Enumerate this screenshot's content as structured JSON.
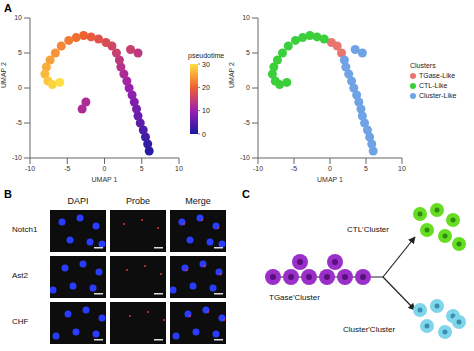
{
  "panel_labels": [
    "A",
    "B",
    "C"
  ],
  "chart_data": [
    {
      "type": "scatter",
      "x_label": "UMAP 1",
      "y_label": "UMAP 2",
      "xlim": [
        -10,
        10
      ],
      "ylim": [
        -10,
        10
      ],
      "xticks": [
        -10,
        -5,
        0,
        5,
        10
      ],
      "yticks": [
        -10,
        -5,
        0,
        5,
        10
      ],
      "x": [
        6,
        5.8,
        5.5,
        5.2,
        4.8,
        4.5,
        4.3,
        4,
        3.7,
        3.3,
        3,
        2.6,
        2.2,
        2,
        4.5,
        3.5,
        1.6,
        1,
        0.2,
        -0.8,
        -1.8,
        -2.8,
        -3.8,
        -4.8,
        -5.8,
        -6.6,
        -7.3,
        -7.8,
        -8,
        -7.6,
        -7,
        -6,
        -2.5,
        -3
      ],
      "y": [
        -9,
        -8,
        -7,
        -6,
        -5,
        -4,
        -3,
        -2,
        -1,
        0,
        1,
        2,
        3,
        4,
        5,
        5.5,
        5,
        6,
        6.5,
        7,
        7.3,
        7.5,
        7.2,
        6.8,
        6,
        5,
        4,
        3,
        2,
        1,
        0.5,
        0.8,
        -2,
        -3
      ],
      "color_values": [
        1,
        2,
        3,
        4,
        5,
        6,
        7,
        8,
        9,
        10,
        11,
        12,
        13,
        14,
        14,
        15,
        15,
        16,
        17,
        18,
        19,
        20,
        21,
        22,
        23,
        24,
        25,
        26,
        27,
        28,
        29,
        30,
        12,
        12
      ],
      "color_label": "pseudotime",
      "color_range": [
        0,
        30
      ],
      "color_ticks": [
        0,
        10,
        20,
        30
      ]
    },
    {
      "type": "scatter",
      "x_label": "UMAP 1",
      "y_label": "UMAP 2",
      "xlim": [
        -10,
        10
      ],
      "ylim": [
        -10,
        10
      ],
      "xticks": [
        -10,
        -5,
        0,
        5,
        10
      ],
      "yticks": [
        -10,
        -5,
        0,
        5,
        10
      ],
      "legend_title": "Clusters",
      "legend": "right",
      "series": [
        {
          "name": "TGase-Like",
          "color": "#e8766f",
          "x": [
            1.6,
            1,
            0.2
          ],
          "y": [
            5,
            6,
            6.5
          ]
        },
        {
          "name": "CTL-Like",
          "color": "#3ccf3c",
          "x": [
            -0.8,
            -1.8,
            -2.8,
            -3.8,
            -4.8,
            -5.8,
            -6.6,
            -7.3,
            -7.8,
            -8,
            -7.6,
            -7,
            -6
          ],
          "y": [
            7,
            7.3,
            7.5,
            7.2,
            6.8,
            6,
            5,
            4,
            3,
            2,
            1,
            0.5,
            0.8
          ]
        },
        {
          "name": "Cluster-Like",
          "color": "#6fa3e6",
          "x": [
            6,
            5.8,
            5.5,
            5.2,
            4.8,
            4.5,
            4.3,
            4,
            3.7,
            3.3,
            3,
            2.6,
            2.2,
            2,
            4.5,
            3.5
          ],
          "y": [
            -9,
            -8,
            -7,
            -6,
            -5,
            -4,
            -3,
            -2,
            -1,
            0,
            1,
            2,
            3,
            4,
            5,
            5.5
          ]
        }
      ]
    }
  ],
  "panel_b": {
    "column_heads": [
      "DAPI",
      "Probe",
      "Merge"
    ],
    "row_labels": [
      "Notch1",
      "Ast2",
      "CHF"
    ]
  },
  "panel_c": {
    "nodes": [
      {
        "label": "TGase'Cluster",
        "color": "#9b30c8"
      },
      {
        "label": "CTL'Cluster",
        "color": "#66dd22"
      },
      {
        "label": "Cluster'Cluster",
        "color": "#7fd6ea"
      }
    ]
  }
}
